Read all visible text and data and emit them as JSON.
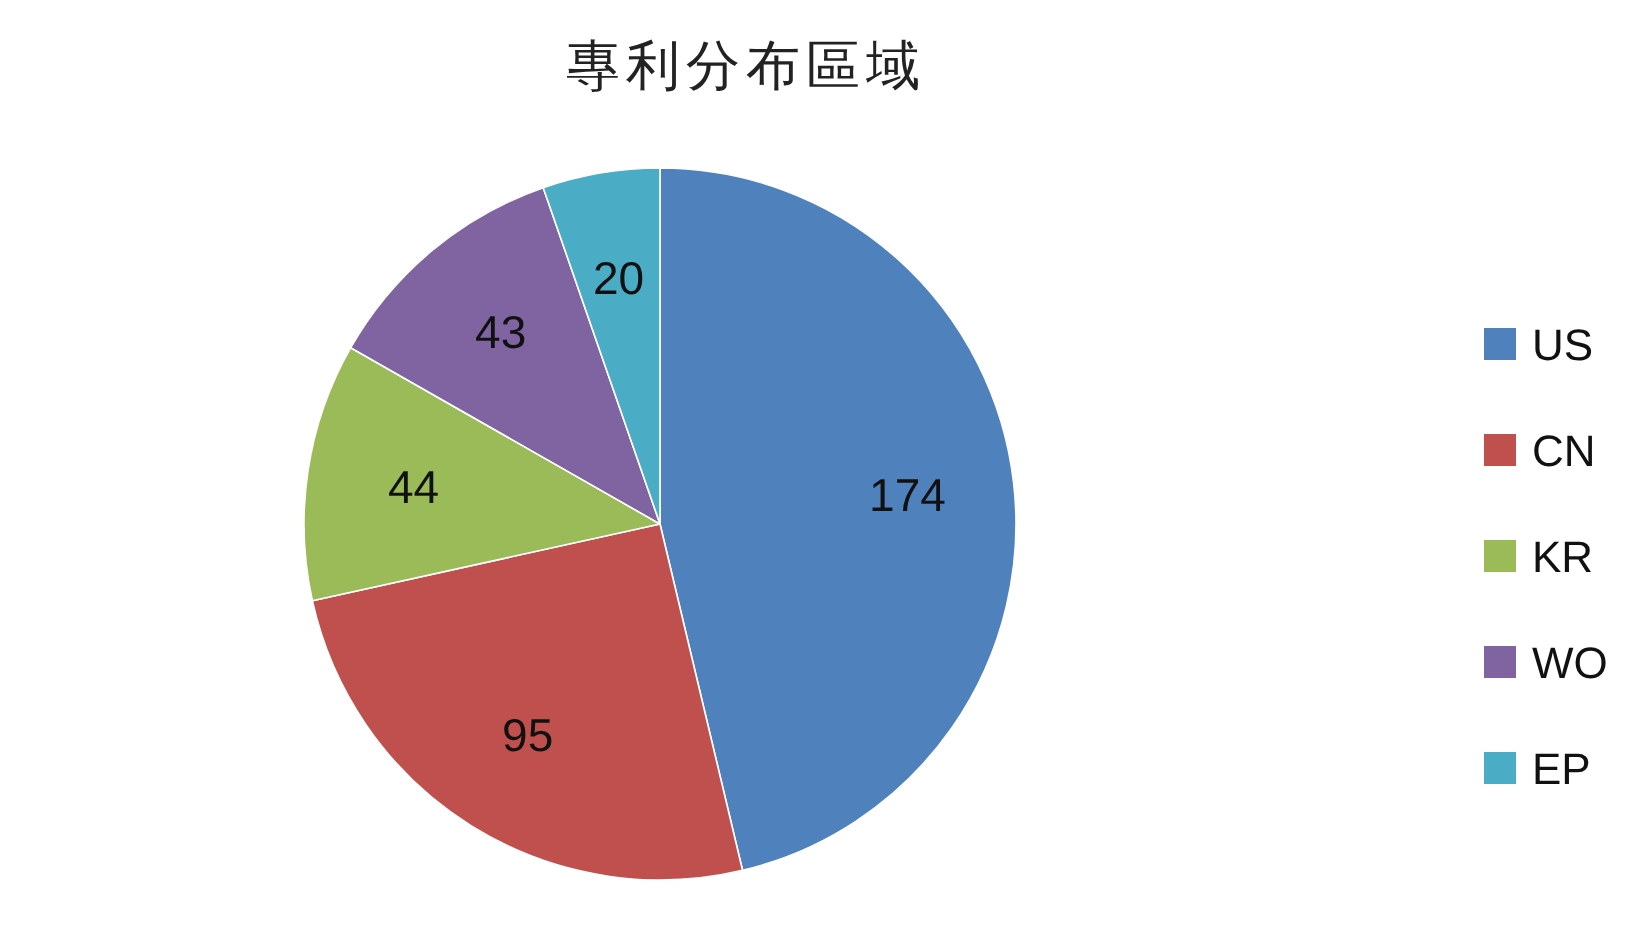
{
  "chart_data": {
    "type": "pie",
    "title": "專利分布區域",
    "categories": [
      "US",
      "CN",
      "KR",
      "WO",
      "EP"
    ],
    "values": [
      174,
      95,
      44,
      43,
      20
    ],
    "colors": [
      "#4f81bd",
      "#c0504d",
      "#9bbb59",
      "#8064a2",
      "#4bacc6"
    ],
    "data_labels": true,
    "legend": "right"
  }
}
